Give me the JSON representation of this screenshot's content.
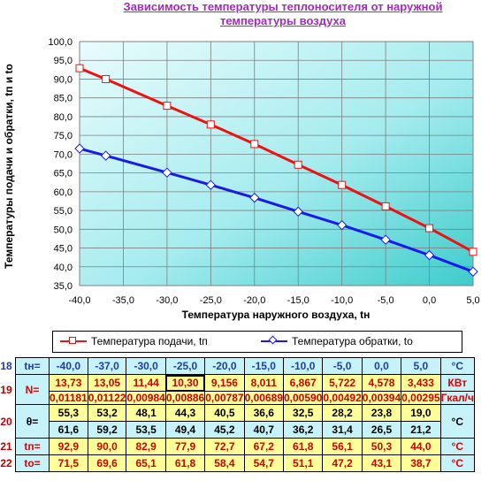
{
  "title_line1": "Зависимость  температуры  теплоносителя  от наружной",
  "title_line2": "температуры  воздуха",
  "chart_data": {
    "type": "line",
    "xlabel": "Температура  наружного  воздуха,  tн",
    "ylabel": "Температуры подачи и обратки,  tп и tо",
    "xlim": [
      -40,
      5
    ],
    "ylim": [
      35,
      100
    ],
    "x_ticks": [
      "-40,0",
      "-35,0",
      "-30,0",
      "-25,0",
      "-20,0",
      "-15,0",
      "-10,0",
      "-5,0",
      "0,0",
      "5,0"
    ],
    "y_ticks": [
      "35,0",
      "40,0",
      "45,0",
      "50,0",
      "55,0",
      "60,0",
      "65,0",
      "70,0",
      "75,0",
      "80,0",
      "85,0",
      "90,0",
      "95,0",
      "100,0"
    ],
    "x": [
      -40,
      -37,
      -30,
      -25,
      -20,
      -15,
      -10,
      -5,
      0,
      5
    ],
    "series": [
      {
        "name": "Температура подачи, tп",
        "color": "#ee1111",
        "marker": "square",
        "values": [
          92.9,
          90.0,
          82.9,
          77.9,
          72.7,
          67.2,
          61.8,
          56.1,
          50.3,
          44.0
        ]
      },
      {
        "name": "Температура обратки, tо",
        "color": "#1a1ae6",
        "marker": "diamond",
        "values": [
          71.5,
          69.6,
          65.1,
          61.8,
          58.4,
          54.7,
          51.1,
          47.2,
          43.1,
          38.7
        ]
      }
    ],
    "grid": true,
    "legend": "bottom"
  },
  "table": {
    "rows": [
      {
        "num": "18",
        "label": "tн=",
        "values": [
          "-40,0",
          "-37,0",
          "-30,0",
          "-25,0",
          "-20,0",
          "-15,0",
          "-10,0",
          "-5,0",
          "0,0",
          "5,0"
        ],
        "unit": "°C"
      },
      {
        "num": "19",
        "label": "N=",
        "values": [
          "13,73",
          "13,05",
          "11,44",
          "10,30",
          "9,156",
          "8,011",
          "6,867",
          "5,722",
          "4,578",
          "3,433"
        ],
        "unit": "КВт",
        "sub_values": [
          "0,01181",
          "0,01122",
          "0,00984",
          "0,00886",
          "0,00787",
          "0,00689",
          "0,00590",
          "0,00492",
          "0,00394",
          "0,00295"
        ],
        "sub_unit": "Гкал/ч"
      },
      {
        "num": "20",
        "label": "θ=",
        "values": [
          "55,3",
          "53,2",
          "48,1",
          "44,3",
          "40,5",
          "36,6",
          "32,5",
          "28,2",
          "23,8",
          "19,0"
        ],
        "unit": "°C",
        "sub_values": [
          "61,6",
          "59,2",
          "53,5",
          "49,4",
          "45,2",
          "40,7",
          "36,2",
          "31,4",
          "26,5",
          "21,2"
        ]
      },
      {
        "num": "21",
        "label": "tп=",
        "values": [
          "92,9",
          "90,0",
          "82,9",
          "77,9",
          "72,7",
          "67,2",
          "61,8",
          "56,1",
          "50,3",
          "44,0"
        ],
        "unit": "°C"
      },
      {
        "num": "22",
        "label": "tо=",
        "values": [
          "71,5",
          "69,6",
          "65,1",
          "61,8",
          "58,4",
          "54,7",
          "51,1",
          "47,2",
          "43,1",
          "38,7"
        ],
        "unit": "°C"
      }
    ]
  }
}
